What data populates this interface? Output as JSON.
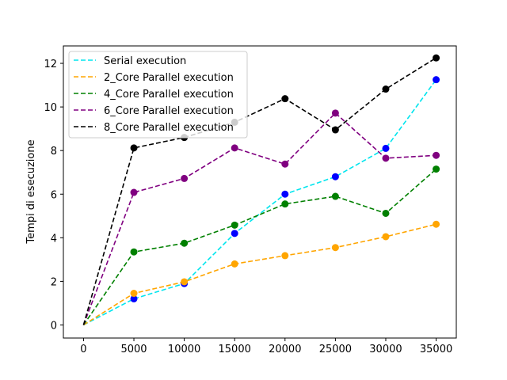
{
  "chart_data": {
    "type": "line",
    "title": "",
    "xlabel": "",
    "ylabel": "Tempi di esecuzione",
    "xlim": [
      -2000,
      37000
    ],
    "ylim": [
      -0.6,
      12.8
    ],
    "x_ticks": [
      0,
      5000,
      10000,
      15000,
      20000,
      25000,
      30000,
      35000
    ],
    "y_ticks": [
      0,
      2,
      4,
      6,
      8,
      10,
      12
    ],
    "grid": false,
    "legend_position": "upper-left",
    "x": [
      0,
      5000,
      10000,
      15000,
      20000,
      25000,
      30000,
      35000
    ],
    "series": [
      {
        "name": "Serial execution",
        "values": [
          0,
          1.2,
          1.9,
          4.2,
          6.0,
          6.8,
          8.1,
          11.25
        ],
        "line_color": "#00e5ee",
        "marker_color": "#0000ff"
      },
      {
        "name": "2_Core Parallel execution",
        "values": [
          0,
          1.45,
          1.98,
          2.8,
          3.18,
          3.55,
          4.05,
          4.62
        ],
        "line_color": "#ffa500",
        "marker_color": "#ffa500"
      },
      {
        "name": "4_Core Parallel execution",
        "values": [
          0,
          3.35,
          3.75,
          4.58,
          5.55,
          5.9,
          5.12,
          7.15
        ],
        "line_color": "#008000",
        "marker_color": "#008000"
      },
      {
        "name": "6_Core Parallel execution",
        "values": [
          0,
          6.08,
          6.72,
          8.12,
          7.38,
          9.72,
          7.65,
          7.78
        ],
        "line_color": "#800080",
        "marker_color": "#800080"
      },
      {
        "name": "8_Core Parallel execution",
        "values": [
          0,
          8.12,
          8.6,
          9.3,
          10.38,
          8.95,
          10.82,
          12.25
        ],
        "line_color": "#000000",
        "marker_color": "#000000"
      }
    ]
  }
}
